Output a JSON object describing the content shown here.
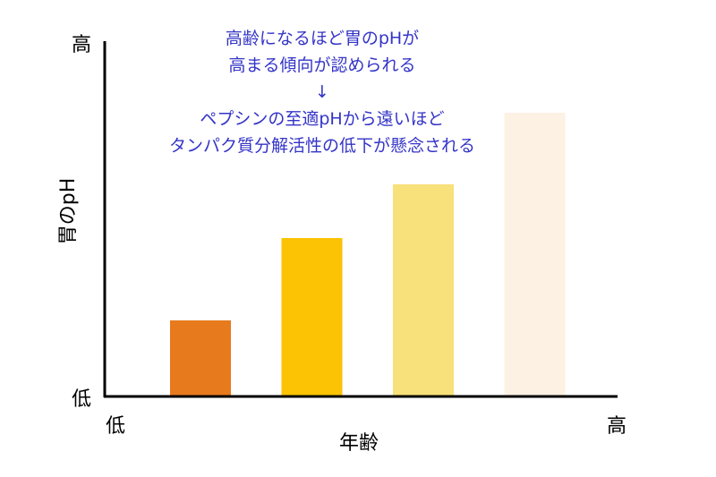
{
  "chart_data": {
    "type": "bar",
    "title": "",
    "xlabel": "年齢",
    "ylabel": "胃のpH",
    "x_tick_low": "低",
    "x_tick_high": "高",
    "y_tick_low": "低",
    "y_tick_high": "高",
    "categories": [
      "",
      "",
      "",
      ""
    ],
    "values": [
      0.21,
      0.44,
      0.59,
      0.79
    ],
    "ylim": [
      0,
      1
    ],
    "colors": [
      "#e87a1e",
      "#fbc304",
      "#f8e07a",
      "#fdf1e4"
    ],
    "grid": false,
    "annotation": [
      "高齢になるほど胃のpHが",
      "高まる傾向が認められる",
      "↓",
      "ペプシンの至適pHから遠いほど",
      "タンパク質分解活性の低下が懸念される"
    ]
  }
}
